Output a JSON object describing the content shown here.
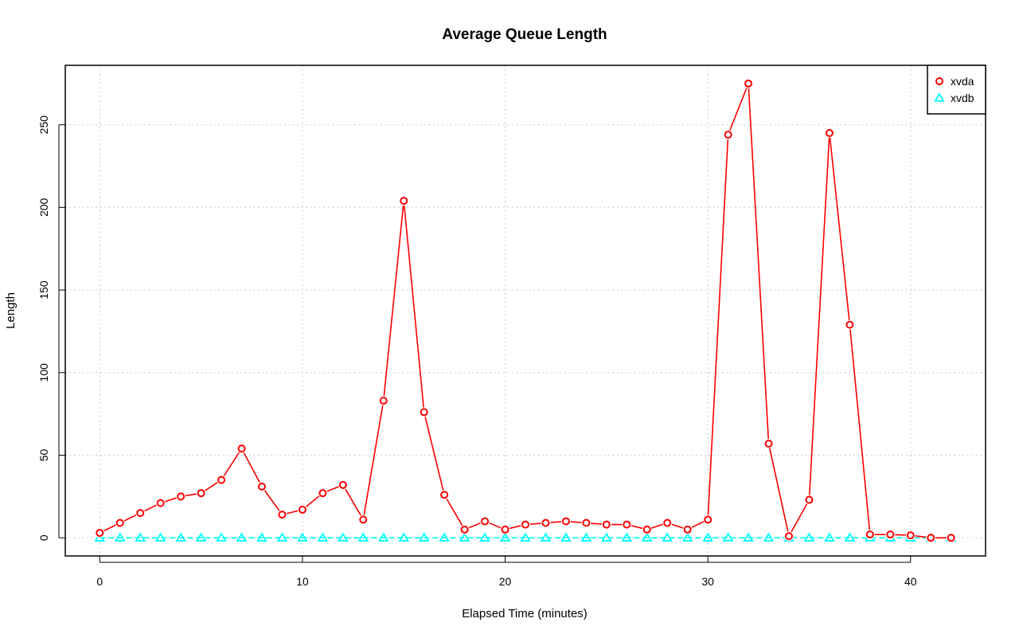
{
  "chart_data": {
    "type": "line",
    "title": "Average Queue Length",
    "xlabel": "Elapsed Time (minutes)",
    "ylabel": "Length",
    "xlim": [
      -1.7,
      43.7
    ],
    "ylim": [
      -11,
      286
    ],
    "x_ticks": [
      0,
      10,
      20,
      30,
      40
    ],
    "y_ticks": [
      0,
      50,
      100,
      150,
      200,
      250
    ],
    "grid": true,
    "legend_position": "top-right",
    "x": [
      0,
      1,
      2,
      3,
      4,
      5,
      6,
      7,
      8,
      9,
      10,
      11,
      12,
      13,
      14,
      15,
      16,
      17,
      18,
      19,
      20,
      21,
      22,
      23,
      24,
      25,
      26,
      27,
      28,
      29,
      30,
      31,
      32,
      33,
      34,
      35,
      36,
      37,
      38,
      39,
      40,
      41,
      42
    ],
    "series": [
      {
        "name": "xvda",
        "color": "#ff0000",
        "marker": "circle",
        "line_style": "solid",
        "values": [
          3,
          9,
          15,
          21,
          25,
          27,
          35,
          54,
          31,
          14,
          17,
          27,
          32,
          11,
          83,
          204,
          76,
          26,
          5,
          10,
          5,
          8,
          9,
          10,
          9,
          8,
          8,
          5,
          9,
          5,
          11,
          244,
          275,
          57,
          1,
          23,
          245,
          129,
          2,
          2,
          1.5,
          0,
          0
        ]
      },
      {
        "name": "xvdb",
        "color": "#00ffff",
        "marker": "triangle",
        "line_style": "dashed",
        "values": [
          0,
          0,
          0,
          0,
          0,
          0,
          0,
          0,
          0,
          0,
          0,
          0,
          0,
          0,
          0,
          0,
          0,
          0,
          0,
          0,
          0,
          0,
          0,
          0,
          0,
          0,
          0,
          0,
          0,
          0,
          0,
          0,
          0,
          0,
          0,
          0,
          0,
          0,
          0,
          0,
          0,
          0,
          0
        ]
      }
    ]
  }
}
